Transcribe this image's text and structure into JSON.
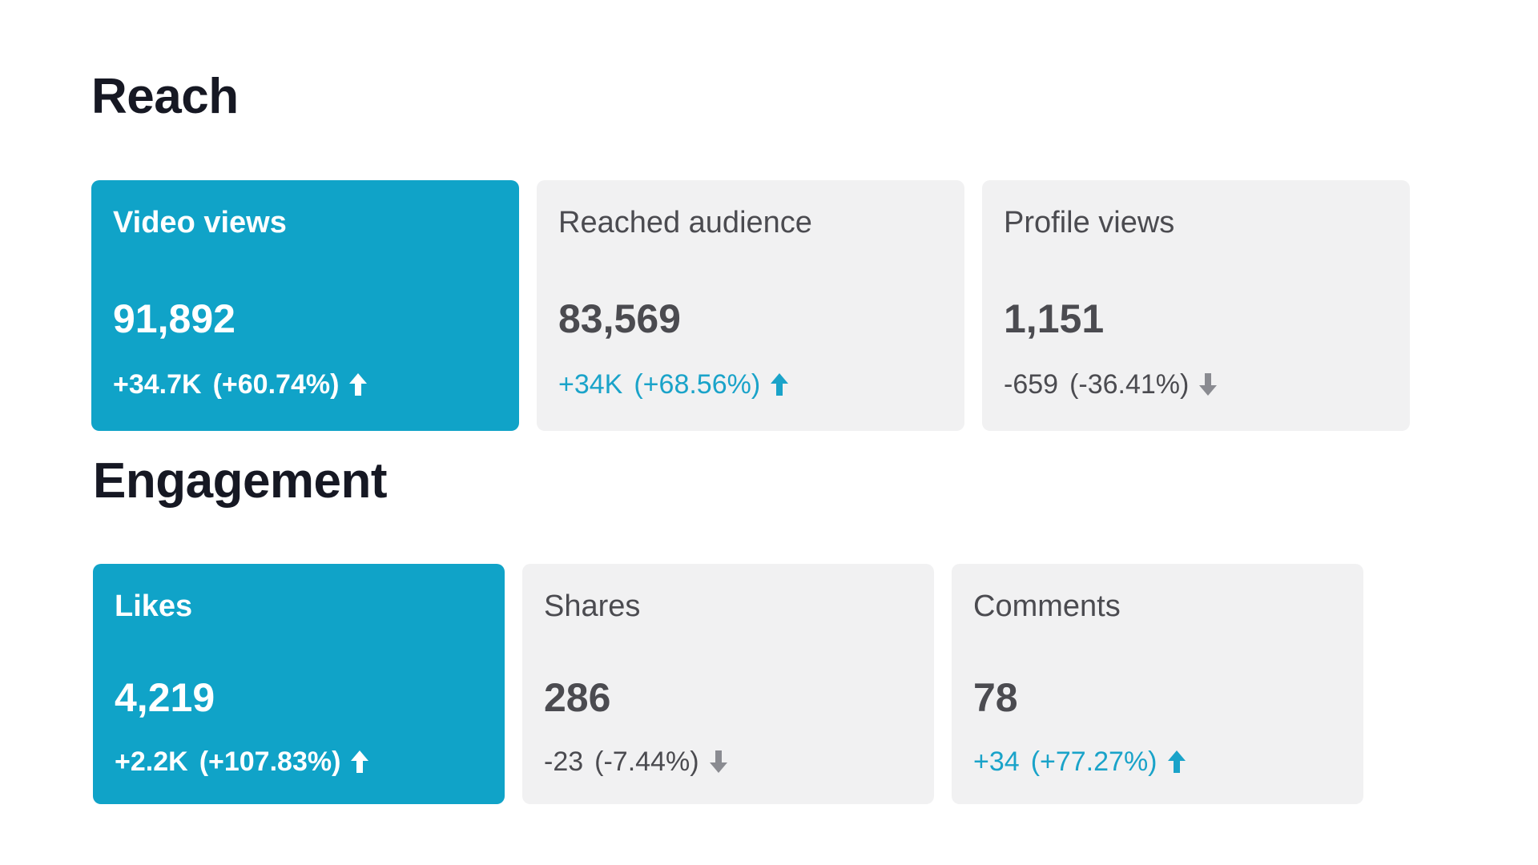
{
  "sections": {
    "reach": {
      "title": "Reach",
      "cards": [
        {
          "label": "Video views",
          "value": "91,892",
          "delta": "+34.7K",
          "percent": "(+60.74%)",
          "trend": "up",
          "active": true
        },
        {
          "label": "Reached audience",
          "value": "83,569",
          "delta": "+34K",
          "percent": "(+68.56%)",
          "trend": "up",
          "active": false
        },
        {
          "label": "Profile views",
          "value": "1,151",
          "delta": "-659",
          "percent": "(-36.41%)",
          "trend": "down",
          "active": false
        }
      ]
    },
    "engagement": {
      "title": "Engagement",
      "cards": [
        {
          "label": "Likes",
          "value": "4,219",
          "delta": "+2.2K",
          "percent": "(+107.83%)",
          "trend": "up",
          "active": true
        },
        {
          "label": "Shares",
          "value": "286",
          "delta": "-23",
          "percent": "(-7.44%)",
          "trend": "down",
          "active": false
        },
        {
          "label": "Comments",
          "value": "78",
          "delta": "+34",
          "percent": "(+77.27%)",
          "trend": "up",
          "active": false
        }
      ]
    }
  },
  "colors": {
    "active_card": "#10a3c8",
    "inactive_card": "#f1f1f2",
    "up_accent": "#1aa3c9",
    "down_neutral": "#8a8b91",
    "title_text": "#161823"
  },
  "icons": {
    "up": "arrow-up-icon",
    "down": "arrow-down-icon"
  }
}
